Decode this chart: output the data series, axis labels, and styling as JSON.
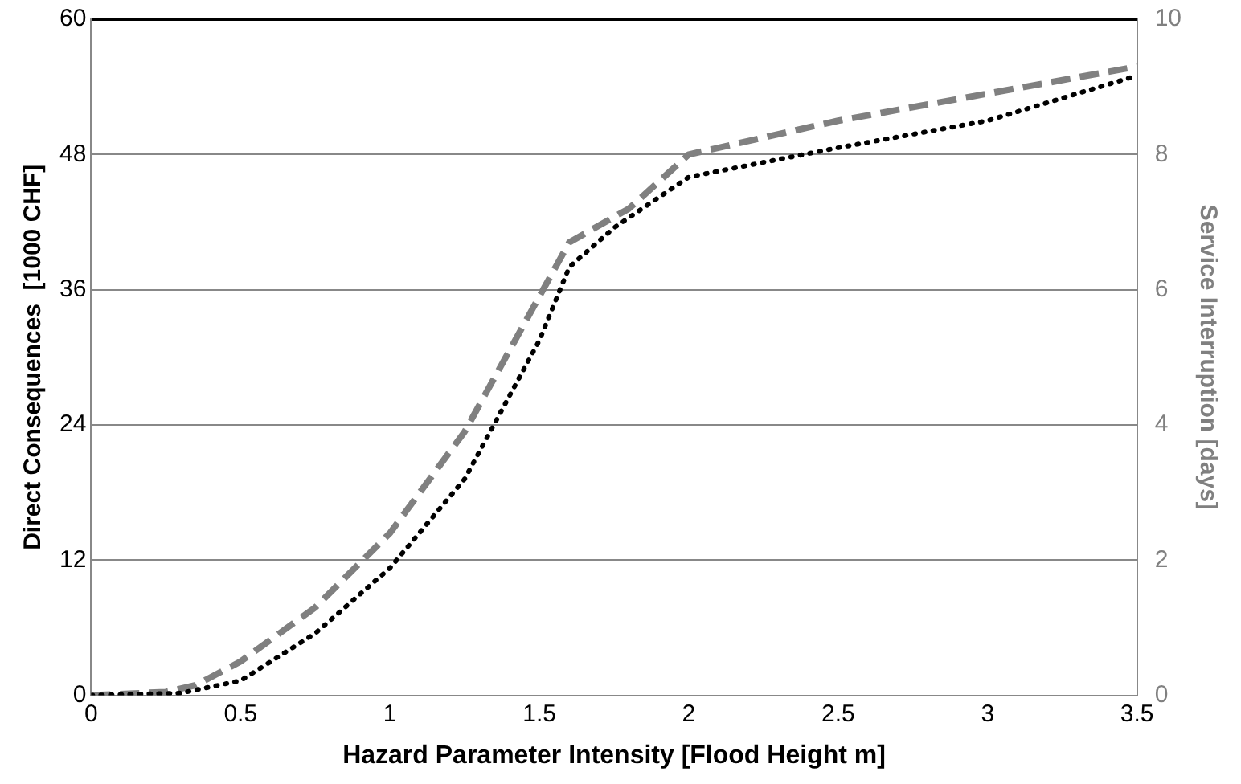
{
  "chart_data": {
    "type": "line",
    "xlabel": "Hazard Parameter Intensity [Flood Height m]",
    "ylabel": "Direct Consequences  [1000 CHF]",
    "y2label": "Service Interruption [days]",
    "xlim": [
      0,
      3.5
    ],
    "xticks": [
      0,
      0.5,
      1,
      1.5,
      2,
      2.5,
      3,
      3.5
    ],
    "ylim": [
      0,
      60
    ],
    "yticks": [
      0,
      12,
      24,
      36,
      48,
      60
    ],
    "y2lim": [
      0,
      10
    ],
    "y2ticks": [
      0,
      2,
      4,
      6,
      8,
      10
    ],
    "grid": "y",
    "legend": false,
    "marker": "none",
    "series": [
      {
        "color": "#000000",
        "line_style": "dotted",
        "x": [
          0,
          0.3,
          0.5,
          0.75,
          1,
          1.25,
          1.5,
          1.6,
          1.75,
          2,
          2.5,
          3,
          3.5
        ],
        "values": [
          0,
          0.2,
          1.3,
          5.5,
          11.3,
          19.2,
          31.5,
          38,
          41.5,
          46,
          48.6,
          51,
          55
        ]
      },
      {
        "color": "#808080",
        "line_style": "dashed",
        "axis": "y2",
        "x": [
          0,
          0.25,
          0.35,
          0.5,
          0.75,
          1,
          1.25,
          1.5,
          1.6,
          1.8,
          2,
          2.5,
          3,
          3.5
        ],
        "values": [
          0,
          0.05,
          0.15,
          0.5,
          1.3,
          2.4,
          3.9,
          5.9,
          6.7,
          7.2,
          8,
          8.5,
          8.9,
          9.3
        ]
      }
    ]
  }
}
